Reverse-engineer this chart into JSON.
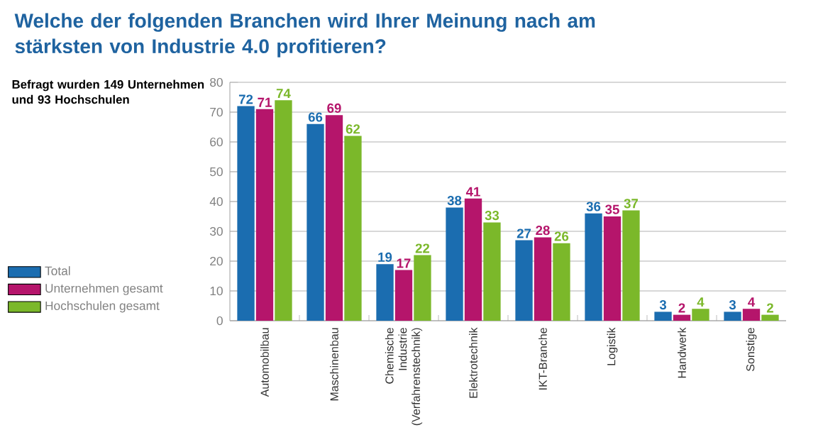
{
  "chart_data": {
    "type": "bar",
    "title": "Welche der folgenden Branchen wird Ihrer Meinung nach am stärksten von Industrie 4.0 profitieren?",
    "subtitle": "Befragt wurden 149 Unternehmen und 93 Hochschulen",
    "categories": [
      "Automobilbau",
      "Maschinenbau",
      "Chemische Industrie (Verfahrenstechnik)",
      "Elektrotechnik",
      "IKT-Branche",
      "Logistik",
      "Handwerk",
      "Sonstige"
    ],
    "series": [
      {
        "name": "Total",
        "color": "#1b6db0",
        "values": [
          72,
          66,
          19,
          38,
          27,
          36,
          3,
          3
        ]
      },
      {
        "name": "Unternehmen gesamt",
        "color": "#b5156b",
        "values": [
          71,
          69,
          17,
          41,
          28,
          35,
          2,
          4
        ]
      },
      {
        "name": "Hochschulen gesamt",
        "color": "#7bb82a",
        "values": [
          74,
          62,
          22,
          33,
          26,
          37,
          4,
          2
        ]
      }
    ],
    "ylim": [
      0,
      80
    ],
    "yticks": [
      0,
      10,
      20,
      30,
      40,
      50,
      60,
      70,
      80
    ],
    "grid": "y",
    "legend": "left",
    "data_labels": true
  }
}
